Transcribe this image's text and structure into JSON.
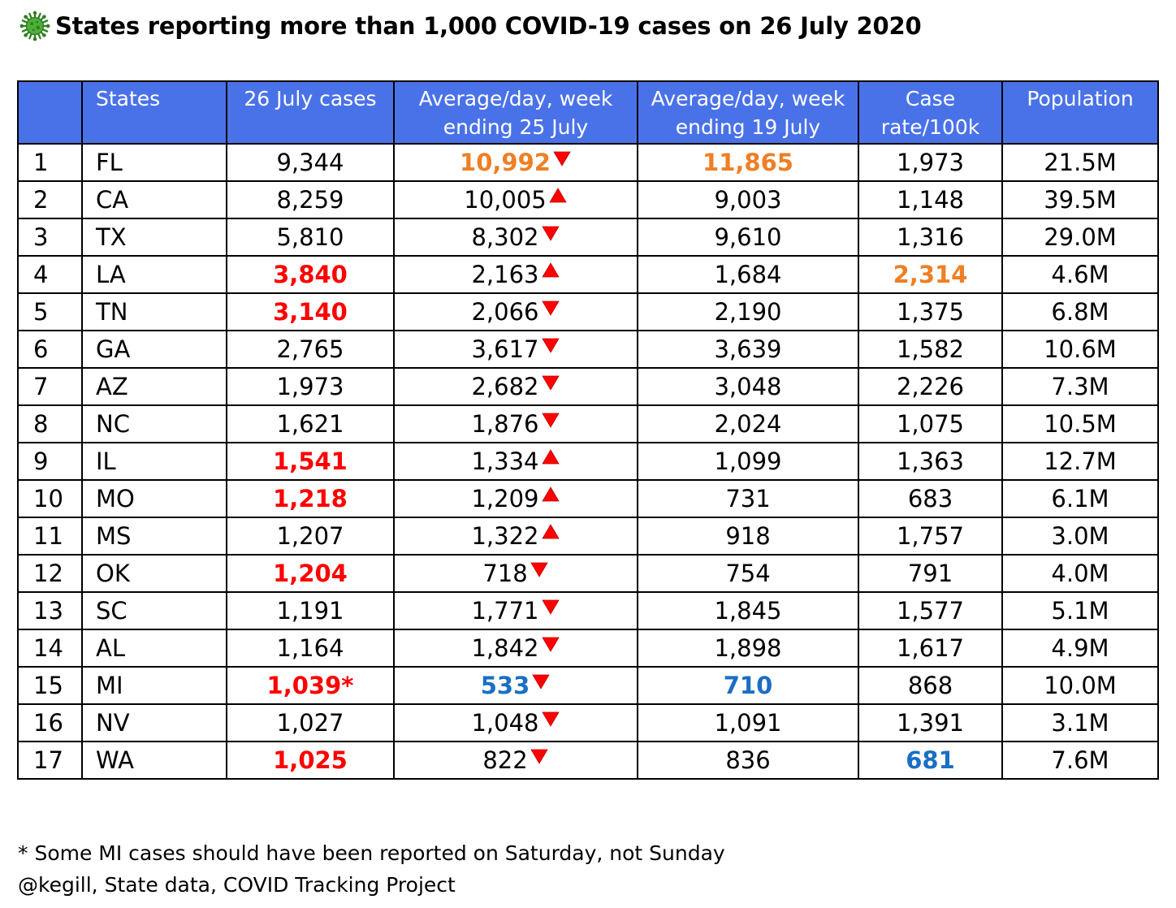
{
  "title": "States reporting more than 1,000 COVID-19 cases on 26 July 2020",
  "icon": "virus-icon",
  "colors": {
    "header_bg": "#4a72e8",
    "highlight_red": "#ff0000",
    "highlight_orange": "#ef7f25",
    "highlight_blue": "#1a6fc2",
    "arrow_red": "#ff0000"
  },
  "table": {
    "headers": [
      "",
      "States",
      "26 July cases",
      "Average/day, week ending 25 July",
      "Average/day, week ending 19 July",
      "Case rate/100k",
      "Population"
    ],
    "rows": [
      {
        "rank": "1",
        "state": "FL",
        "cases": "9,344",
        "cases_hl": "",
        "avg25": "10,992",
        "avg25_hl": "orange",
        "trend": "down",
        "avg19": "11,865",
        "avg19_hl": "orange",
        "rate": "1,973",
        "rate_hl": "",
        "population": "21.5M"
      },
      {
        "rank": "2",
        "state": "CA",
        "cases": "8,259",
        "cases_hl": "",
        "avg25": "10,005",
        "avg25_hl": "",
        "trend": "up",
        "avg19": "9,003",
        "avg19_hl": "",
        "rate": "1,148",
        "rate_hl": "",
        "population": "39.5M"
      },
      {
        "rank": "3",
        "state": "TX",
        "cases": "5,810",
        "cases_hl": "",
        "avg25": "8,302",
        "avg25_hl": "",
        "trend": "down",
        "avg19": "9,610",
        "avg19_hl": "",
        "rate": "1,316",
        "rate_hl": "",
        "population": "29.0M"
      },
      {
        "rank": "4",
        "state": "LA",
        "cases": "3,840",
        "cases_hl": "red",
        "avg25": "2,163",
        "avg25_hl": "",
        "trend": "up",
        "avg19": "1,684",
        "avg19_hl": "",
        "rate": "2,314",
        "rate_hl": "orange",
        "population": "4.6M"
      },
      {
        "rank": "5",
        "state": "TN",
        "cases": "3,140",
        "cases_hl": "red",
        "avg25": "2,066",
        "avg25_hl": "",
        "trend": "down",
        "avg19": "2,190",
        "avg19_hl": "",
        "rate": "1,375",
        "rate_hl": "",
        "population": "6.8M"
      },
      {
        "rank": "6",
        "state": "GA",
        "cases": "2,765",
        "cases_hl": "",
        "avg25": "3,617",
        "avg25_hl": "",
        "trend": "down",
        "avg19": "3,639",
        "avg19_hl": "",
        "rate": "1,582",
        "rate_hl": "",
        "population": "10.6M"
      },
      {
        "rank": "7",
        "state": "AZ",
        "cases": "1,973",
        "cases_hl": "",
        "avg25": "2,682",
        "avg25_hl": "",
        "trend": "down",
        "avg19": "3,048",
        "avg19_hl": "",
        "rate": "2,226",
        "rate_hl": "",
        "population": "7.3M"
      },
      {
        "rank": "8",
        "state": "NC",
        "cases": "1,621",
        "cases_hl": "",
        "avg25": "1,876",
        "avg25_hl": "",
        "trend": "down",
        "avg19": "2,024",
        "avg19_hl": "",
        "rate": "1,075",
        "rate_hl": "",
        "population": "10.5M"
      },
      {
        "rank": "9",
        "state": "IL",
        "cases": "1,541",
        "cases_hl": "red",
        "avg25": "1,334",
        "avg25_hl": "",
        "trend": "up",
        "avg19": "1,099",
        "avg19_hl": "",
        "rate": "1,363",
        "rate_hl": "",
        "population": "12.7M"
      },
      {
        "rank": "10",
        "state": "MO",
        "cases": "1,218",
        "cases_hl": "red",
        "avg25": "1,209",
        "avg25_hl": "",
        "trend": "up",
        "avg19": "731",
        "avg19_hl": "",
        "rate": "683",
        "rate_hl": "",
        "population": "6.1M"
      },
      {
        "rank": "11",
        "state": "MS",
        "cases": "1,207",
        "cases_hl": "",
        "avg25": "1,322",
        "avg25_hl": "",
        "trend": "up",
        "avg19": "918",
        "avg19_hl": "",
        "rate": "1,757",
        "rate_hl": "",
        "population": "3.0M"
      },
      {
        "rank": "12",
        "state": "OK",
        "cases": "1,204",
        "cases_hl": "red",
        "avg25": "718",
        "avg25_hl": "",
        "trend": "down",
        "avg19": "754",
        "avg19_hl": "",
        "rate": "791",
        "rate_hl": "",
        "population": "4.0M"
      },
      {
        "rank": "13",
        "state": "SC",
        "cases": "1,191",
        "cases_hl": "",
        "avg25": "1,771",
        "avg25_hl": "",
        "trend": "down",
        "avg19": "1,845",
        "avg19_hl": "",
        "rate": "1,577",
        "rate_hl": "",
        "population": "5.1M"
      },
      {
        "rank": "14",
        "state": "AL",
        "cases": "1,164",
        "cases_hl": "",
        "avg25": "1,842",
        "avg25_hl": "",
        "trend": "down",
        "avg19": "1,898",
        "avg19_hl": "",
        "rate": "1,617",
        "rate_hl": "",
        "population": "4.9M"
      },
      {
        "rank": "15",
        "state": "MI",
        "cases": "1,039*",
        "cases_hl": "red",
        "avg25": "533",
        "avg25_hl": "blue",
        "trend": "down",
        "avg19": "710",
        "avg19_hl": "blue",
        "rate": "868",
        "rate_hl": "",
        "population": "10.0M"
      },
      {
        "rank": "16",
        "state": "NV",
        "cases": "1,027",
        "cases_hl": "",
        "avg25": "1,048",
        "avg25_hl": "",
        "trend": "down",
        "avg19": "1,091",
        "avg19_hl": "",
        "rate": "1,391",
        "rate_hl": "",
        "population": "3.1M"
      },
      {
        "rank": "17",
        "state": "WA",
        "cases": "1,025",
        "cases_hl": "red",
        "avg25": "822",
        "avg25_hl": "",
        "trend": "down",
        "avg19": "836",
        "avg19_hl": "",
        "rate": "681",
        "rate_hl": "blue",
        "population": "7.6M"
      }
    ]
  },
  "footnotes": {
    "note": "* Some MI cases should have been reported on Saturday, not Sunday",
    "source": "@kegill, State data, COVID Tracking Project"
  }
}
